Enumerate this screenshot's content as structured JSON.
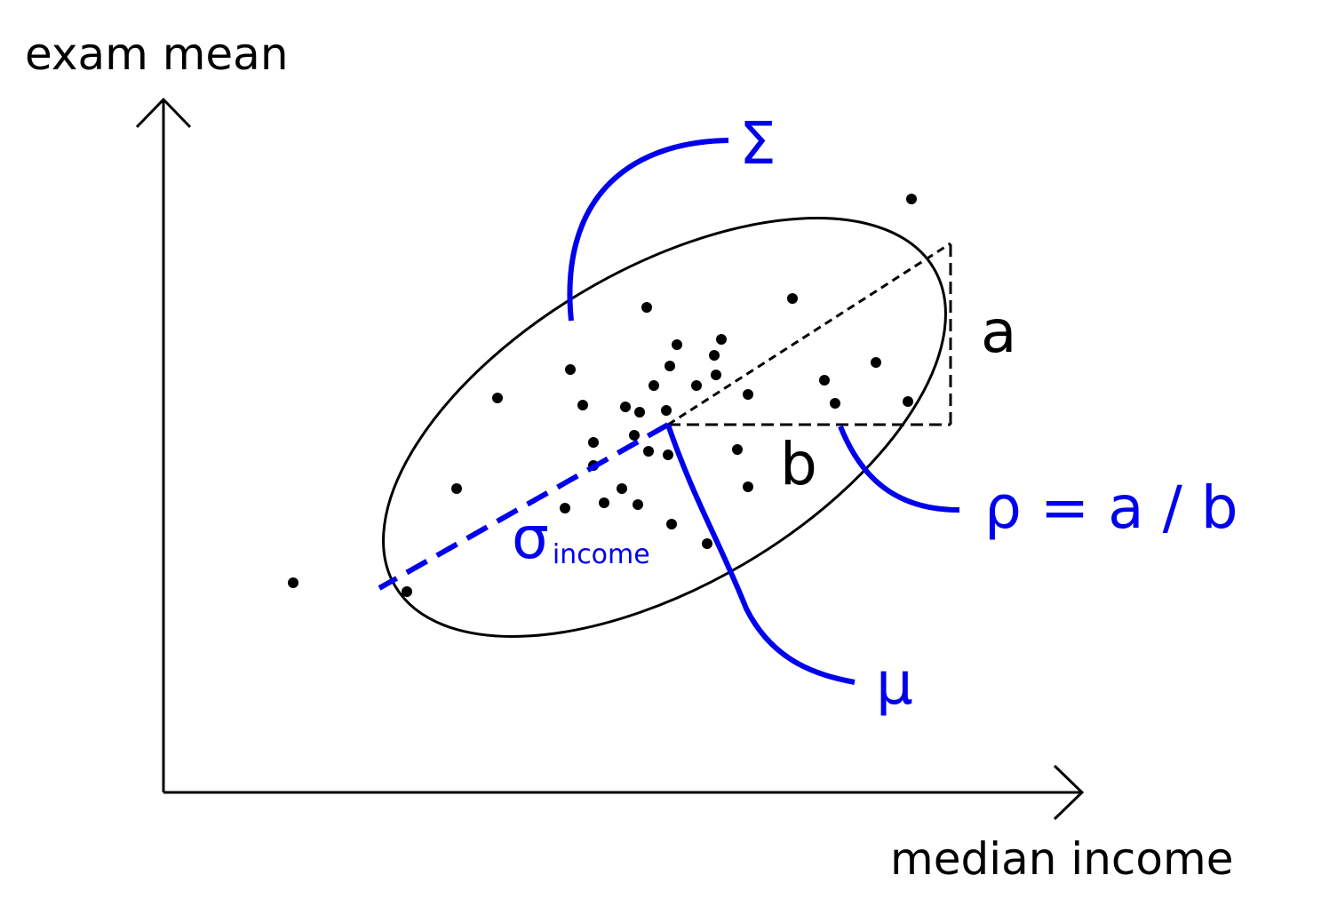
{
  "labels": {
    "y_axis": "exam mean",
    "x_axis": "median income",
    "sigma_matrix": "Σ",
    "a": "a",
    "b": "b",
    "rho": "ρ = a / b",
    "mu": "μ",
    "sigma_income_symbol": "σ",
    "sigma_income_subscript": "income"
  },
  "colors": {
    "ink": "#000000",
    "accent": "#0000ee"
  },
  "points": [
    [
      1026,
      224
    ],
    [
      892,
      336
    ],
    [
      728,
      346
    ],
    [
      762,
      388
    ],
    [
      812,
      382
    ],
    [
      642,
      416
    ],
    [
      754,
      412
    ],
    [
      804,
      400
    ],
    [
      806,
      422
    ],
    [
      986,
      408
    ],
    [
      928,
      428
    ],
    [
      560,
      448
    ],
    [
      656,
      456
    ],
    [
      736,
      434
    ],
    [
      784,
      434
    ],
    [
      842,
      444
    ],
    [
      940,
      454
    ],
    [
      1022,
      452
    ],
    [
      704,
      458
    ],
    [
      720,
      464
    ],
    [
      750,
      462
    ],
    [
      668,
      498
    ],
    [
      714,
      490
    ],
    [
      730,
      508
    ],
    [
      752,
      512
    ],
    [
      830,
      506
    ],
    [
      668,
      524
    ],
    [
      514,
      550
    ],
    [
      842,
      548
    ],
    [
      636,
      572
    ],
    [
      680,
      566
    ],
    [
      700,
      550
    ],
    [
      718,
      568
    ],
    [
      756,
      590
    ],
    [
      796,
      612
    ],
    [
      458,
      666
    ],
    [
      330,
      656
    ]
  ]
}
